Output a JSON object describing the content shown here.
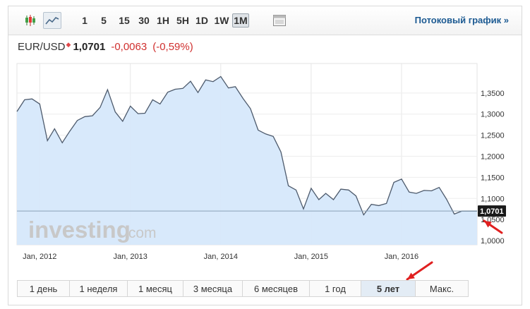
{
  "toolbar": {
    "chart_types": [
      {
        "name": "candlestick-chart-icon"
      },
      {
        "name": "line-chart-icon"
      }
    ],
    "timeframes": [
      "1",
      "5",
      "15",
      "30",
      "1H",
      "5H",
      "1D",
      "1W",
      "1M"
    ],
    "active_timeframe": "1M",
    "streaming_link": "Потоковый график »"
  },
  "quote": {
    "symbol": "EUR/USD",
    "price": "1,0701",
    "change": "-0,0063",
    "change_pct": "(-0,59%)"
  },
  "watermark": {
    "brand": "investing",
    "suffix": ".com"
  },
  "chart_data": {
    "type": "area",
    "x_tick_labels": [
      "Jan, 2012",
      "Jan, 2013",
      "Jan, 2014",
      "Jan, 2015",
      "Jan, 2016"
    ],
    "x": [
      "2011-10",
      "2011-11",
      "2011-12",
      "2012-01",
      "2012-02",
      "2012-03",
      "2012-04",
      "2012-05",
      "2012-06",
      "2012-07",
      "2012-08",
      "2012-09",
      "2012-10",
      "2012-11",
      "2012-12",
      "2013-01",
      "2013-02",
      "2013-03",
      "2013-04",
      "2013-05",
      "2013-06",
      "2013-07",
      "2013-08",
      "2013-09",
      "2013-10",
      "2013-11",
      "2013-12",
      "2014-01",
      "2014-02",
      "2014-03",
      "2014-04",
      "2014-05",
      "2014-06",
      "2014-07",
      "2014-08",
      "2014-09",
      "2014-10",
      "2014-11",
      "2014-12",
      "2015-01",
      "2015-02",
      "2015-03",
      "2015-04",
      "2015-05",
      "2015-06",
      "2015-07",
      "2015-08",
      "2015-09",
      "2015-10",
      "2015-11",
      "2015-12",
      "2016-01",
      "2016-02",
      "2016-03",
      "2016-04",
      "2016-05",
      "2016-06",
      "2016-07",
      "2016-08",
      "2016-09",
      "2016-10",
      "2016-11"
    ],
    "values": [
      1.306,
      1.334,
      1.336,
      1.324,
      1.237,
      1.265,
      1.232,
      1.259,
      1.285,
      1.294,
      1.296,
      1.316,
      1.358,
      1.305,
      1.283,
      1.319,
      1.301,
      1.302,
      1.334,
      1.324,
      1.352,
      1.359,
      1.361,
      1.378,
      1.351,
      1.381,
      1.377,
      1.389,
      1.362,
      1.365,
      1.337,
      1.313,
      1.262,
      1.253,
      1.247,
      1.21,
      1.13,
      1.12,
      1.075,
      1.124,
      1.097,
      1.112,
      1.097,
      1.122,
      1.12,
      1.106,
      1.061,
      1.086,
      1.083,
      1.088,
      1.138,
      1.146,
      1.115,
      1.112,
      1.119,
      1.118,
      1.126,
      1.098,
      1.063,
      1.07,
      1.07,
      1.07
    ],
    "y_ticks": [
      "1,0000",
      "1,0500",
      "1,1000",
      "1,1500",
      "1,2000",
      "1,2500",
      "1,3000",
      "1,3500"
    ],
    "y_tick_values": [
      1.0,
      1.05,
      1.1,
      1.15,
      1.2,
      1.25,
      1.3,
      1.35
    ],
    "ylim": [
      0.99,
      1.42
    ],
    "current_price_label": "1,0701",
    "current_price": 1.0701,
    "line_color": "#4d5a6c",
    "fill_color": "#d6e8fb",
    "price_line_color": "#8aa2b8",
    "grid": true
  },
  "ranges": {
    "items": [
      "1 день",
      "1 неделя",
      "1 месяц",
      "3 месяца",
      "6 месяцев",
      "1 год",
      "5 лет",
      "Макс."
    ],
    "active": "5 лет"
  },
  "annotations": {
    "arrow_color": "#e02020"
  }
}
